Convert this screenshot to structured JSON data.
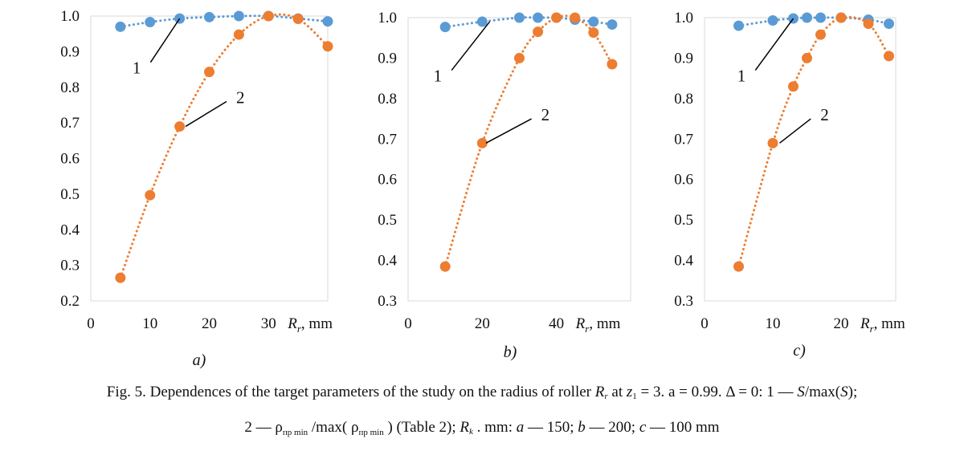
{
  "charts": [
    {
      "id": "a",
      "label": "a)",
      "type": "scatter-line",
      "xlim": [
        0,
        40
      ],
      "ylim": [
        0.2,
        1.0
      ],
      "xticks": [
        "0",
        "10",
        "20",
        "30"
      ],
      "xtick_values": [
        0,
        10,
        20,
        30
      ],
      "yticks": [
        "0.2",
        "0.3",
        "0.4",
        "0.5",
        "0.6",
        "0.7",
        "0.8",
        "0.9",
        "1.0"
      ],
      "ytick_values": [
        0.2,
        0.3,
        0.4,
        0.5,
        0.6,
        0.7,
        0.8,
        0.9,
        1.0
      ],
      "xlabel_main": "R",
      "xlabel_sub": "r",
      "xlabel_unit": ", mm",
      "series": [
        {
          "label": "1",
          "color": "#5b9bd5",
          "x": [
            5,
            10,
            15,
            20,
            25,
            30,
            35,
            40
          ],
          "y": [
            0.97,
            0.983,
            0.993,
            0.997,
            1.0,
            1.0,
            0.993,
            0.985
          ],
          "label_at": [
            15,
            0.993
          ],
          "label_text_at": [
            9,
            0.87
          ]
        },
        {
          "label": "2",
          "color": "#ed7d31",
          "x": [
            5,
            10,
            15,
            20,
            25,
            30,
            35,
            40
          ],
          "y": [
            0.265,
            0.497,
            0.69,
            0.843,
            0.948,
            1.0,
            0.992,
            0.915
          ],
          "label_at": [
            16,
            0.69
          ],
          "label_text_at": [
            24,
            0.76
          ]
        }
      ]
    },
    {
      "id": "b",
      "label": "b)",
      "type": "scatter-line",
      "xlim": [
        0,
        60
      ],
      "ylim": [
        0.3,
        1.0
      ],
      "xticks": [
        "0",
        "20",
        "40"
      ],
      "xtick_values": [
        0,
        20,
        40
      ],
      "yticks": [
        "0.3",
        "0.4",
        "0.5",
        "0.6",
        "0.7",
        "0.8",
        "0.9",
        "1.0"
      ],
      "ytick_values": [
        0.3,
        0.4,
        0.5,
        0.6,
        0.7,
        0.8,
        0.9,
        1.0
      ],
      "xlabel_main": "R",
      "xlabel_sub": "r",
      "xlabel_unit": ", mm",
      "series": [
        {
          "label": "1",
          "color": "#5b9bd5",
          "x": [
            10,
            20,
            30,
            35,
            40,
            45,
            50,
            55
          ],
          "y": [
            0.977,
            0.99,
            1.0,
            1.0,
            1.0,
            0.995,
            0.99,
            0.983
          ],
          "label_at": [
            22,
            0.99
          ],
          "label_text_at": [
            10,
            0.87
          ]
        },
        {
          "label": "2",
          "color": "#ed7d31",
          "x": [
            10,
            20,
            30,
            35,
            40,
            45,
            50,
            55
          ],
          "y": [
            0.385,
            0.69,
            0.9,
            0.965,
            1.0,
            1.0,
            0.963,
            0.885
          ],
          "label_at": [
            21,
            0.69
          ],
          "label_text_at": [
            35,
            0.75
          ]
        }
      ]
    },
    {
      "id": "c",
      "label": "c)",
      "type": "scatter-line",
      "xlim": [
        0,
        28
      ],
      "ylim": [
        0.3,
        1.0
      ],
      "xticks": [
        "0",
        "10",
        "20"
      ],
      "xtick_values": [
        0,
        10,
        20
      ],
      "yticks": [
        "0.3",
        "0.4",
        "0.5",
        "0.6",
        "0.7",
        "0.8",
        "0.9",
        "1.0"
      ],
      "ytick_values": [
        0.3,
        0.4,
        0.5,
        0.6,
        0.7,
        0.8,
        0.9,
        1.0
      ],
      "xlabel_main": "R",
      "xlabel_sub": "r",
      "xlabel_unit": ", mm",
      "series": [
        {
          "label": "1",
          "color": "#5b9bd5",
          "x": [
            5,
            10,
            13,
            15,
            17,
            20,
            24,
            27
          ],
          "y": [
            0.98,
            0.993,
            0.998,
            1.0,
            1.0,
            1.0,
            0.995,
            0.985
          ],
          "label_at": [
            13,
            0.998
          ],
          "label_text_at": [
            6.5,
            0.87
          ]
        },
        {
          "label": "2",
          "color": "#ed7d31",
          "x": [
            5,
            10,
            13,
            15,
            17,
            20,
            24,
            27
          ],
          "y": [
            0.385,
            0.69,
            0.83,
            0.9,
            0.958,
            1.0,
            0.985,
            0.905
          ],
          "label_at": [
            11,
            0.69
          ],
          "label_text_at": [
            16.5,
            0.75
          ]
        }
      ]
    }
  ],
  "caption": {
    "line1_prefix": "Fig. 5. Dependences of the target parameters of the study on the radius of roller ",
    "line1_R": "R",
    "line1_Rsub": "r",
    "line1_mid": " at ",
    "line1_z": "z",
    "line1_zsub": "1",
    "line1_rest": " = 3. a = 0.99. Δ = 0: 1 — ",
    "line1_S": "S",
    "line1_max": "/max(",
    "line1_S2": "S",
    "line1_end": ");",
    "line2_a": "2 — ρ",
    "line2_sub1": "пр min",
    "line2_b": " /max( ρ",
    "line2_sub2": "пр min",
    "line2_c": " ) (Table 2); ",
    "line2_R": "R",
    "line2_Rsub": "k",
    "line2_d": " . mm: ",
    "line2_ai": "a",
    "line2_e": " — 150; ",
    "line2_bi": "b",
    "line2_f": " — 200; ",
    "line2_ci": "c",
    "line2_g": " — 100 mm"
  }
}
